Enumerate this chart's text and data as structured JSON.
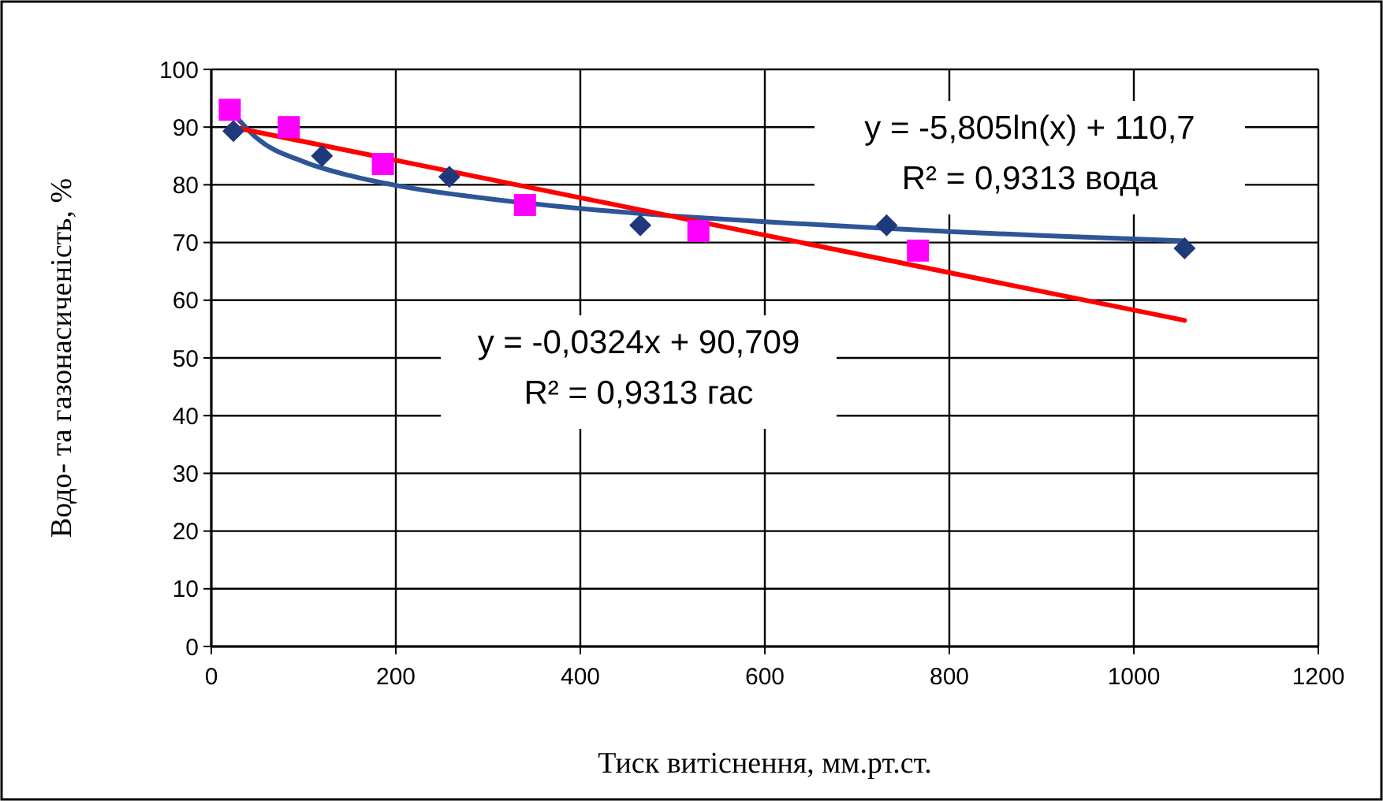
{
  "chart_data": {
    "type": "scatter",
    "xlabel": "Тиск витіснення, мм.рт.ст.",
    "ylabel": "Водо- та газонасиченість, %",
    "xlim": [
      0,
      1200
    ],
    "xticks": [
      0,
      200,
      400,
      600,
      800,
      1000,
      1200
    ],
    "ylim": [
      0,
      100
    ],
    "yticks": [
      0,
      10,
      20,
      30,
      40,
      50,
      60,
      70,
      80,
      90,
      100
    ],
    "grid": true,
    "annotations": [
      "y = -5,805ln(x) + 110,7\nR² = 0,9313  вода",
      "y = -0,0324x + 90,709\nR² = 0,9313 гас"
    ],
    "series": [
      {
        "marker": "diamond",
        "color": "#1f3a7a",
        "x": [
          24,
          120,
          258,
          465,
          732,
          1055
        ],
        "values": [
          89.3,
          85,
          81.4,
          73,
          73,
          69
        ]
      },
      {
        "marker": "square",
        "color": "#ff00ff",
        "x": [
          20,
          84,
          186,
          340,
          528,
          766
        ],
        "values": [
          93,
          90,
          83.6,
          76.5,
          72,
          68.6
        ]
      },
      {
        "type": "line",
        "marker": "none",
        "color": "#2e5597",
        "x": [
          24,
          50,
          100,
          150,
          200,
          300,
          400,
          500,
          600,
          700,
          800,
          900,
          1055
        ],
        "values": [
          92.3,
          88,
          84,
          81.6,
          79.9,
          77.6,
          75.9,
          74.6,
          73.6,
          72.7,
          71.9,
          71.2,
          70.3
        ]
      },
      {
        "type": "line",
        "marker": "none",
        "color": "#ff0000",
        "x": [
          20,
          1055
        ],
        "values": [
          90.1,
          56.5
        ]
      }
    ]
  }
}
